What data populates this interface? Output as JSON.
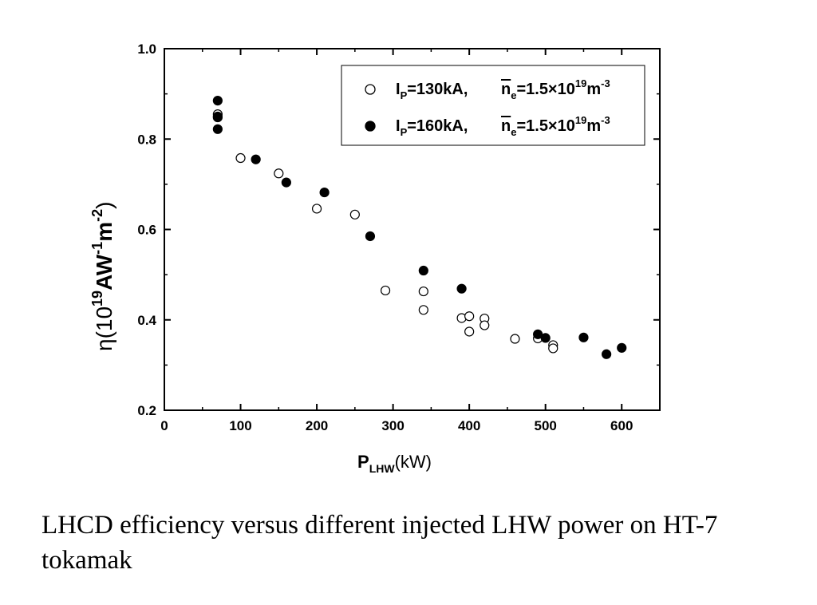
{
  "chart_data": {
    "type": "scatter",
    "xlim": [
      0,
      650
    ],
    "ylim": [
      0.2,
      1.0
    ],
    "x_ticks": [
      0,
      100,
      200,
      300,
      400,
      500,
      600
    ],
    "y_ticks": [
      0.2,
      0.4,
      0.6,
      0.8,
      1.0
    ],
    "x_tick_labels": [
      "0",
      "100",
      "200",
      "300",
      "400",
      "500",
      "600"
    ],
    "y_tick_labels": [
      "0.2",
      "0.4",
      "0.6",
      "0.8",
      "1.0"
    ],
    "xlabel": {
      "main": "P",
      "sub": "LHW",
      "unit": "(kW)"
    },
    "ylabel": {
      "eta": "η",
      "open": "(10",
      "exp1": "19",
      "mid1": "AW",
      "exp2": "-1",
      "mid2": "m",
      "exp3": "-2",
      "close": ")"
    },
    "legend_position": "top-right",
    "grid": false,
    "series": [
      {
        "marker": "open-circle",
        "legend": {
          "ip": "I",
          "ip_sub": "P",
          "ip_val": "=130kA,",
          "ne": "n",
          "ne_sub": "e",
          "ne_val": "=1.5×10",
          "ne_exp": "19",
          "unit": "m",
          "unit_exp": "-3"
        },
        "points": [
          [
            70,
            0.855
          ],
          [
            70,
            0.848
          ],
          [
            100,
            0.758
          ],
          [
            150,
            0.724
          ],
          [
            200,
            0.646
          ],
          [
            250,
            0.633
          ],
          [
            290,
            0.465
          ],
          [
            340,
            0.463
          ],
          [
            340,
            0.422
          ],
          [
            390,
            0.404
          ],
          [
            400,
            0.408
          ],
          [
            400,
            0.374
          ],
          [
            420,
            0.403
          ],
          [
            420,
            0.388
          ],
          [
            460,
            0.358
          ],
          [
            490,
            0.359
          ],
          [
            510,
            0.344
          ],
          [
            510,
            0.337
          ]
        ]
      },
      {
        "marker": "filled-circle",
        "legend": {
          "ip": "I",
          "ip_sub": "P",
          "ip_val": "=160kA,",
          "ne": "n",
          "ne_sub": "e",
          "ne_val": "=1.5×10",
          "ne_exp": "19",
          "unit": "m",
          "unit_exp": "-3"
        },
        "points": [
          [
            70,
            0.885
          ],
          [
            70,
            0.85
          ],
          [
            70,
            0.822
          ],
          [
            120,
            0.755
          ],
          [
            160,
            0.704
          ],
          [
            210,
            0.682
          ],
          [
            270,
            0.585
          ],
          [
            340,
            0.509
          ],
          [
            390,
            0.469
          ],
          [
            490,
            0.368
          ],
          [
            500,
            0.36
          ],
          [
            550,
            0.361
          ],
          [
            580,
            0.324
          ],
          [
            600,
            0.338
          ]
        ]
      }
    ]
  },
  "caption": "LHCD efficiency versus different injected LHW power on HT-7 tokamak"
}
